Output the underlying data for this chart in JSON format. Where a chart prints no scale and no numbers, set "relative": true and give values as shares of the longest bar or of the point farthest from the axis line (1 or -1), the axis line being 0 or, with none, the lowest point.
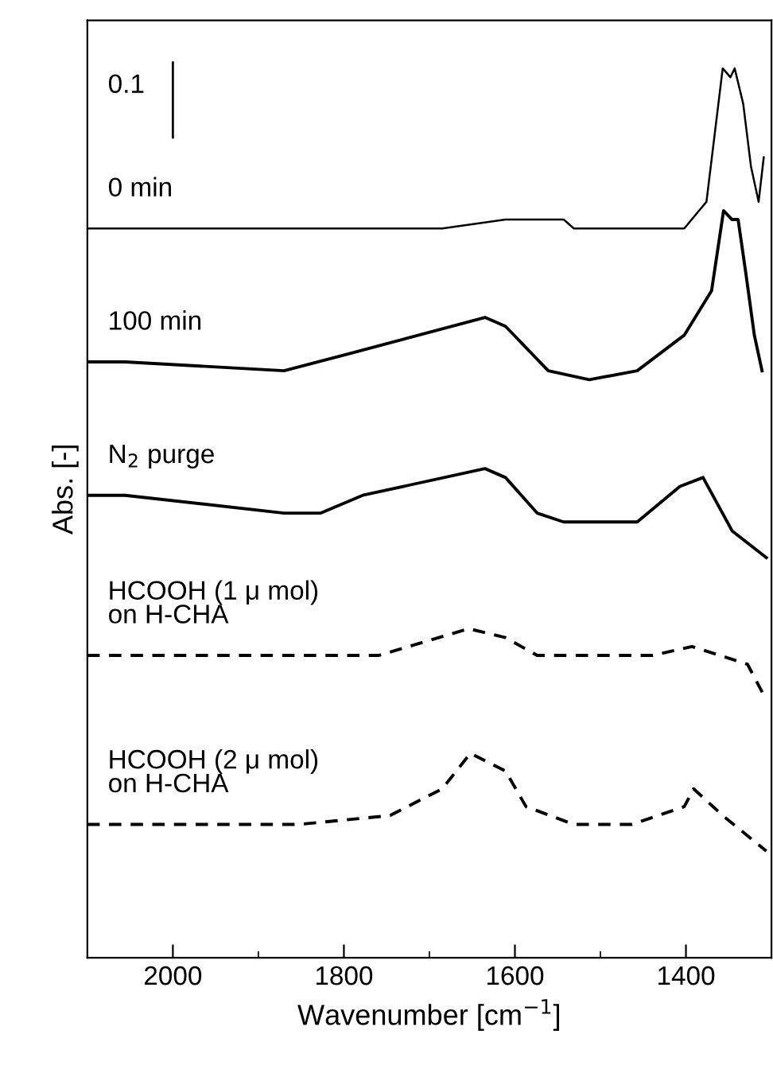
{
  "chart_data": {
    "type": "line",
    "relative": true,
    "xlabel": "Wavenumber [cm$^{−1}$]",
    "ylabel": "Abs. [-]",
    "xlim": [
      2100,
      1300
    ],
    "xticks": [
      2000,
      1800,
      1600,
      1400
    ],
    "grid": false,
    "legend": false,
    "marker": "none",
    "annotations": [
      "0.1"
    ],
    "series": [
      {
        "name": "0 min",
        "color": "#000000",
        "line_style": "solid",
        "x": [
          2100,
          2056,
          1870,
          1685,
          1611,
          1561,
          1543,
          1531,
          1402,
          1376,
          1357,
          1348,
          1343,
          1333,
          1324,
          1315,
          1309
        ],
        "values": [
          0.82,
          0.82,
          0.82,
          0.82,
          0.83,
          0.83,
          0.83,
          0.82,
          0.82,
          0.85,
          1.0,
          0.99,
          1.0,
          0.96,
          0.89,
          0.85,
          0.9
        ]
      },
      {
        "name": "100 min",
        "color": "#000000",
        "line_style": "solid",
        "x": [
          2100,
          2056,
          1870,
          1791,
          1635,
          1611,
          1561,
          1513,
          1457,
          1402,
          1370,
          1356,
          1346,
          1339,
          1330,
          1320,
          1311
        ],
        "values": [
          0.67,
          0.67,
          0.66,
          0.68,
          0.72,
          0.71,
          0.66,
          0.65,
          0.66,
          0.7,
          0.75,
          0.84,
          0.83,
          0.83,
          0.77,
          0.7,
          0.66
        ]
      },
      {
        "name": "N$_{2}$ purge",
        "color": "#000000",
        "line_style": "solid",
        "x": [
          2100,
          2056,
          1870,
          1827,
          1778,
          1635,
          1611,
          1574,
          1543,
          1457,
          1407,
          1380,
          1346,
          1306
        ],
        "values": [
          0.52,
          0.52,
          0.5,
          0.5,
          0.52,
          0.55,
          0.54,
          0.5,
          0.49,
          0.49,
          0.53,
          0.54,
          0.48,
          0.45
        ]
      },
      {
        "name": "HCOOH (1 μ mol)\non H-CHA",
        "color": "#000000",
        "line_style": "dashed",
        "x": [
          2100,
          2056,
          1759,
          1654,
          1611,
          1574,
          1439,
          1393,
          1328,
          1306
        ],
        "values": [
          0.34,
          0.34,
          0.34,
          0.37,
          0.36,
          0.34,
          0.34,
          0.35,
          0.33,
          0.29
        ]
      },
      {
        "name": "HCOOH (2 μ mol)\non H-CHA",
        "color": "#000000",
        "line_style": "dashed",
        "x": [
          2100,
          2056,
          1852,
          1746,
          1685,
          1652,
          1611,
          1587,
          1531,
          1463,
          1402,
          1391,
          1357,
          1306
        ],
        "values": [
          0.15,
          0.15,
          0.15,
          0.16,
          0.19,
          0.23,
          0.21,
          0.17,
          0.15,
          0.15,
          0.17,
          0.19,
          0.16,
          0.12
        ]
      }
    ]
  }
}
